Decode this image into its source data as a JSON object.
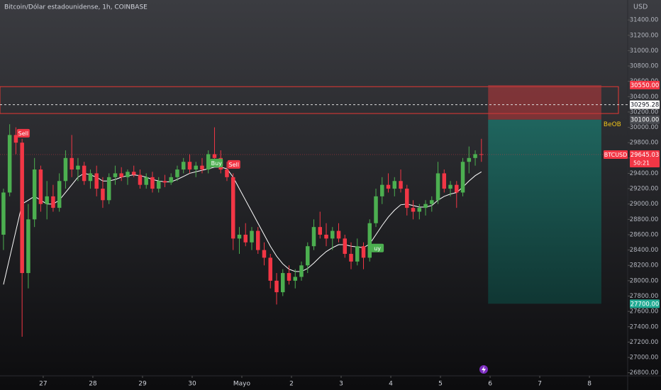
{
  "chart_data": {
    "type": "candlestick",
    "title": "Bitcoin/Dólar estadounidense, 1h, COINBASE",
    "currency": "USD",
    "xlim": [
      26.13,
      38.77
    ],
    "ylim": [
      26760,
      31660
    ],
    "xticks": [
      {
        "value": 27,
        "label": "27"
      },
      {
        "value": 28,
        "label": "28"
      },
      {
        "value": 29,
        "label": "29"
      },
      {
        "value": 30,
        "label": "30"
      },
      {
        "value": 31,
        "label": "Mayo"
      },
      {
        "value": 32,
        "label": "2"
      },
      {
        "value": 33,
        "label": "3"
      },
      {
        "value": 34,
        "label": "4"
      },
      {
        "value": 35,
        "label": "5"
      },
      {
        "value": 36,
        "label": "6"
      },
      {
        "value": 37,
        "label": "7"
      },
      {
        "value": 38,
        "label": "8"
      }
    ],
    "yticks": [
      {
        "value": 26800,
        "label": "26800.00"
      },
      {
        "value": 27000,
        "label": "27000.00"
      },
      {
        "value": 27200,
        "label": "27200.00"
      },
      {
        "value": 27400,
        "label": "27400.00"
      },
      {
        "value": 27600,
        "label": "27600.00"
      },
      {
        "value": 27800,
        "label": "27800.00"
      },
      {
        "value": 28000,
        "label": "28000.00"
      },
      {
        "value": 28200,
        "label": "28200.00"
      },
      {
        "value": 28400,
        "label": "28400.00"
      },
      {
        "value": 28600,
        "label": "28600.00"
      },
      {
        "value": 28800,
        "label": "28800.00"
      },
      {
        "value": 29000,
        "label": "29000.00"
      },
      {
        "value": 29200,
        "label": "29200.00"
      },
      {
        "value": 29400,
        "label": "29400.00"
      },
      {
        "value": 29600,
        "label": "29600.00"
      },
      {
        "value": 29800,
        "label": "29800.00"
      },
      {
        "value": 30000,
        "label": "30000.00"
      },
      {
        "value": 30200,
        "label": "30200.00"
      },
      {
        "value": 30400,
        "label": "30400.00"
      },
      {
        "value": 30600,
        "label": "30600.00"
      },
      {
        "value": 30800,
        "label": "30800.00"
      },
      {
        "value": 31000,
        "label": "31000.00"
      },
      {
        "value": 31200,
        "label": "31200.00"
      },
      {
        "value": 31400,
        "label": "31400.00"
      }
    ],
    "up_color": "#4caf50",
    "down_color": "#f23645",
    "candles": {
      "x": [
        26.2,
        26.325,
        26.45,
        26.575,
        26.7,
        26.825,
        26.95,
        27.075,
        27.2,
        27.325,
        27.45,
        27.575,
        27.7,
        27.825,
        27.95,
        28.075,
        28.2,
        28.325,
        28.45,
        28.575,
        28.7,
        28.825,
        28.95,
        29.075,
        29.2,
        29.325,
        29.45,
        29.575,
        29.7,
        29.825,
        29.95,
        30.075,
        30.2,
        30.325,
        30.45,
        30.575,
        30.7,
        30.825,
        30.95,
        31.075,
        31.2,
        31.325,
        31.45,
        31.575,
        31.7,
        31.825,
        31.95,
        32.075,
        32.2,
        32.325,
        32.45,
        32.575,
        32.7,
        32.825,
        32.95,
        33.075,
        33.2,
        33.325,
        33.45,
        33.575,
        33.7,
        33.825,
        33.95,
        34.075,
        34.2,
        34.325,
        34.45,
        34.575,
        34.7,
        34.825,
        34.95,
        35.075,
        35.2,
        35.325,
        35.45,
        35.575,
        35.7,
        35.825
      ],
      "open": [
        28600,
        29150,
        29900,
        29800,
        28100,
        28800,
        29450,
        29000,
        29100,
        28950,
        29300,
        29600,
        29450,
        29500,
        29300,
        29400,
        29200,
        29050,
        29350,
        29400,
        29350,
        29420,
        29380,
        29250,
        29350,
        29200,
        29300,
        29280,
        29350,
        29450,
        29550,
        29450,
        29500,
        29450,
        29650,
        29600,
        29450,
        29350,
        28550,
        28600,
        28500,
        28650,
        28400,
        28300,
        28000,
        27850,
        28100,
        28000,
        28050,
        28200,
        28450,
        28700,
        28600,
        28550,
        28650,
        28550,
        28350,
        28250,
        28450,
        28300,
        28750,
        29100,
        29250,
        29200,
        29300,
        29200,
        28950,
        28900,
        28950,
        29000,
        29050,
        29400,
        29200,
        29250,
        29150,
        29550,
        29600,
        29650
      ],
      "high": [
        29200,
        30040,
        30000,
        29850,
        29000,
        29600,
        29500,
        29300,
        29250,
        29400,
        29700,
        29900,
        29600,
        29550,
        29450,
        29500,
        29350,
        29400,
        29500,
        29480,
        29450,
        29500,
        29450,
        29400,
        29420,
        29350,
        29380,
        29400,
        29500,
        29600,
        29650,
        29550,
        29600,
        29700,
        30000,
        29700,
        29550,
        29400,
        28700,
        28750,
        28700,
        28700,
        28500,
        28350,
        28100,
        28150,
        28200,
        28150,
        28250,
        28500,
        28800,
        28900,
        28750,
        28700,
        28750,
        28600,
        28500,
        28550,
        28500,
        28800,
        29200,
        29350,
        29400,
        29350,
        29450,
        29250,
        29050,
        29000,
        29050,
        29100,
        29550,
        29450,
        29300,
        29300,
        29600,
        29750,
        29700,
        29850
      ],
      "low": [
        28400,
        29100,
        29650,
        27270,
        27900,
        28700,
        28900,
        28800,
        28900,
        28900,
        29200,
        29350,
        29300,
        29250,
        29200,
        29100,
        28950,
        29000,
        29250,
        29300,
        29250,
        29350,
        29200,
        29200,
        29150,
        29150,
        29220,
        29250,
        29300,
        29400,
        29400,
        29350,
        29400,
        29400,
        29500,
        29400,
        29300,
        28400,
        28350,
        28450,
        28400,
        28350,
        28200,
        27900,
        27690,
        27800,
        27950,
        27900,
        28000,
        28100,
        28400,
        28550,
        28450,
        28400,
        28500,
        28300,
        28150,
        28200,
        28150,
        28250,
        28700,
        29000,
        29150,
        29100,
        29150,
        28850,
        28800,
        28800,
        28850,
        28900,
        29000,
        29150,
        29100,
        28950,
        29100,
        29400,
        29500,
        29550
      ],
      "close": [
        29150,
        29900,
        29800,
        28100,
        28800,
        29450,
        29000,
        29100,
        28950,
        29300,
        29600,
        29450,
        29500,
        29300,
        29400,
        29200,
        29050,
        29350,
        29400,
        29350,
        29420,
        29380,
        29250,
        29350,
        29200,
        29300,
        29280,
        29350,
        29450,
        29550,
        29450,
        29500,
        29450,
        29650,
        29600,
        29450,
        29350,
        28550,
        28600,
        28500,
        28650,
        28400,
        28300,
        28000,
        27850,
        28100,
        28000,
        28050,
        28200,
        28450,
        28700,
        28600,
        28550,
        28650,
        28550,
        28350,
        28250,
        28450,
        28300,
        28750,
        29100,
        29250,
        29200,
        29300,
        29200,
        28950,
        28900,
        28950,
        29000,
        29050,
        29400,
        29200,
        29250,
        29150,
        29550,
        29600,
        29650,
        29645
      ]
    },
    "ma": {
      "color": "#ffffff",
      "values": [
        27950,
        28300,
        28650,
        29000,
        29050,
        29100,
        29050,
        29000,
        29000,
        29050,
        29150,
        29250,
        29350,
        29400,
        29380,
        29350,
        29300,
        29300,
        29320,
        29350,
        29370,
        29380,
        29370,
        29350,
        29320,
        29300,
        29290,
        29290,
        29320,
        29360,
        29400,
        29420,
        29440,
        29460,
        29480,
        29480,
        29460,
        29350,
        29200,
        29050,
        28900,
        28750,
        28600,
        28450,
        28320,
        28220,
        28150,
        28120,
        28120,
        28160,
        28230,
        28310,
        28380,
        28430,
        28470,
        28470,
        28450,
        28440,
        28430,
        28480,
        28600,
        28720,
        28830,
        28920,
        28990,
        29000,
        28980,
        28960,
        28960,
        28980,
        29050,
        29100,
        29130,
        29150,
        29220,
        29300,
        29370,
        29420
      ]
    },
    "signals": [
      {
        "label": "Sell",
        "x": 26.6,
        "y": 29923,
        "color": "#f23645"
      },
      {
        "label": "Buy",
        "x": 30.49,
        "y": 29535,
        "color": "#4caf50"
      },
      {
        "label": "Sell",
        "x": 30.84,
        "y": 29516,
        "color": "#f23645"
      },
      {
        "label": "uy",
        "x": 33.73,
        "y": 28426,
        "color": "#4caf50"
      }
    ],
    "zone": [
      30530,
      30180
    ],
    "position": {
      "x": [
        35.96,
        38.24
      ],
      "stop": 30550,
      "entry": 30100,
      "target": 27700
    },
    "annotation": "BeOB",
    "price_tags": [
      {
        "value": 30550,
        "label": "30550.00",
        "color": "#f23645"
      },
      {
        "value": 30295.28,
        "label": "30295.28",
        "color": "#ffffff"
      },
      {
        "value": 30100,
        "label": "30100.00",
        "color": "#4a4c52"
      },
      {
        "value": 27700,
        "label": "27700.00",
        "color": "#22ab94"
      }
    ],
    "last_price": {
      "symbol": "BTCUSD",
      "value": 29645.03,
      "label": "29645.03",
      "countdown": "50:21",
      "color": "#f23645"
    }
  }
}
